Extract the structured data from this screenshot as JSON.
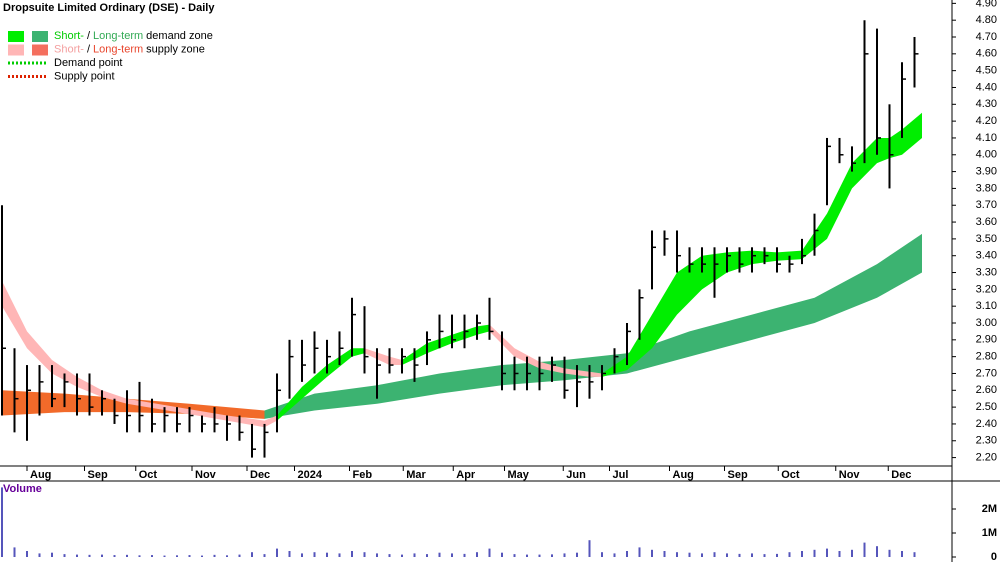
{
  "chart_data": {
    "type": "ohlc",
    "title": "Dropsuite Limited Ordinary (DSE) - Daily",
    "legend": [
      {
        "swatches": [
          "#00ee00",
          "#3cb371"
        ],
        "parts": [
          "Short-",
          "/",
          "Long-term",
          "demand zone"
        ],
        "part_colors": [
          "#00cc00",
          "#000000",
          "#33aa55",
          "#000000"
        ]
      },
      {
        "swatches": [
          "#ffb6b6",
          "#f46f5e"
        ],
        "parts": [
          "Short-",
          "/",
          "Long-term",
          "supply zone"
        ],
        "part_colors": [
          "#f4a0a0",
          "#000000",
          "#e8452c",
          "#000000"
        ]
      },
      {
        "line_color": "#00cc00",
        "parts": [
          "Demand point"
        ],
        "part_colors": [
          "#000000"
        ]
      },
      {
        "line_color": "#dd2200",
        "parts": [
          "Supply point"
        ],
        "part_colors": [
          "#000000"
        ]
      }
    ],
    "xlim": [
      0,
      76
    ],
    "xticks": [
      {
        "value": 2.0,
        "label": "Aug"
      },
      {
        "value": 6.6,
        "label": "Sep"
      },
      {
        "value": 10.7,
        "label": "Oct"
      },
      {
        "value": 15.2,
        "label": "Nov"
      },
      {
        "value": 19.6,
        "label": "Dec"
      },
      {
        "value": 23.4,
        "label": "2024"
      },
      {
        "value": 27.8,
        "label": "Feb"
      },
      {
        "value": 32.1,
        "label": "Mar"
      },
      {
        "value": 36.1,
        "label": "Apr"
      },
      {
        "value": 40.2,
        "label": "May"
      },
      {
        "value": 44.9,
        "label": "Jun"
      },
      {
        "value": 48.6,
        "label": "Jul"
      },
      {
        "value": 53.4,
        "label": "Aug"
      },
      {
        "value": 57.8,
        "label": "Sep"
      },
      {
        "value": 62.1,
        "label": "Oct"
      },
      {
        "value": 66.7,
        "label": "Nov"
      },
      {
        "value": 70.9,
        "label": "Dec"
      }
    ],
    "ylim": [
      2.15,
      4.92
    ],
    "yticks": [
      {
        "value": 2.2,
        "label": "2.20"
      },
      {
        "value": 2.3,
        "label": "2.30"
      },
      {
        "value": 2.4,
        "label": "2.40"
      },
      {
        "value": 2.5,
        "label": "2.50"
      },
      {
        "value": 2.6,
        "label": "2.60"
      },
      {
        "value": 2.7,
        "label": "2.70"
      },
      {
        "value": 2.8,
        "label": "2.80"
      },
      {
        "value": 2.9,
        "label": "2.90"
      },
      {
        "value": 3.0,
        "label": "3.00"
      },
      {
        "value": 3.1,
        "label": "3.10"
      },
      {
        "value": 3.2,
        "label": "3.20"
      },
      {
        "value": 3.3,
        "label": "3.30"
      },
      {
        "value": 3.4,
        "label": "3.40"
      },
      {
        "value": 3.5,
        "label": "3.50"
      },
      {
        "value": 3.6,
        "label": "3.60"
      },
      {
        "value": 3.7,
        "label": "3.70"
      },
      {
        "value": 3.8,
        "label": "3.80"
      },
      {
        "value": 3.9,
        "label": "3.90"
      },
      {
        "value": 4.0,
        "label": "4.00"
      },
      {
        "value": 4.1,
        "label": "4.10"
      },
      {
        "value": 4.2,
        "label": "4.20"
      },
      {
        "value": 4.3,
        "label": "4.30"
      },
      {
        "value": 4.4,
        "label": "4.40"
      },
      {
        "value": 4.5,
        "label": "4.50"
      },
      {
        "value": 4.6,
        "label": "4.60"
      },
      {
        "value": 4.7,
        "label": "4.70"
      },
      {
        "value": 4.8,
        "label": "4.80"
      },
      {
        "value": 4.9,
        "label": "4.90"
      }
    ],
    "bar_color": "#000000",
    "low": [
      2.45,
      2.35,
      2.3,
      2.45,
      2.5,
      2.5,
      2.45,
      2.45,
      2.45,
      2.4,
      2.35,
      2.35,
      2.35,
      2.35,
      2.35,
      2.35,
      2.35,
      2.35,
      2.3,
      2.3,
      2.2,
      2.2,
      2.35,
      2.55,
      2.65,
      2.7,
      2.7,
      2.75,
      2.8,
      2.7,
      2.55,
      2.7,
      2.7,
      2.65,
      2.75,
      2.85,
      2.85,
      2.85,
      2.9,
      2.9,
      2.6,
      2.6,
      2.6,
      2.6,
      2.65,
      2.55,
      2.5,
      2.55,
      2.6,
      2.7,
      2.75,
      2.9,
      3.2,
      3.4,
      3.3,
      3.3,
      3.3,
      3.15,
      3.3,
      3.3,
      3.3,
      3.35,
      3.3,
      3.3,
      3.35,
      3.4,
      3.7,
      3.95,
      3.9,
      3.95,
      4.0,
      3.8,
      4.1,
      4.4
    ],
    "high": [
      3.7,
      2.85,
      2.75,
      2.75,
      2.75,
      2.7,
      2.7,
      2.7,
      2.6,
      2.55,
      2.6,
      2.65,
      2.55,
      2.5,
      2.5,
      2.5,
      2.45,
      2.5,
      2.45,
      2.45,
      2.4,
      2.4,
      2.7,
      2.9,
      2.9,
      2.95,
      2.9,
      2.95,
      3.15,
      3.1,
      2.85,
      2.85,
      2.85,
      2.85,
      2.95,
      3.05,
      3.05,
      3.05,
      3.05,
      3.15,
      2.95,
      2.8,
      2.8,
      2.8,
      2.8,
      2.8,
      2.75,
      2.75,
      2.75,
      2.85,
      3.0,
      3.2,
      3.55,
      3.55,
      3.55,
      3.45,
      3.45,
      3.45,
      3.45,
      3.45,
      3.45,
      3.45,
      3.45,
      3.4,
      3.5,
      3.65,
      4.1,
      4.1,
      4.05,
      4.8,
      4.75,
      4.3,
      4.55,
      4.7
    ],
    "close": [
      2.85,
      2.55,
      2.6,
      2.65,
      2.55,
      2.65,
      2.55,
      2.5,
      2.55,
      2.45,
      2.45,
      2.45,
      2.4,
      2.45,
      2.4,
      2.45,
      2.4,
      2.4,
      2.4,
      2.35,
      2.25,
      2.35,
      2.6,
      2.8,
      2.75,
      2.85,
      2.8,
      2.85,
      3.05,
      2.8,
      2.75,
      2.75,
      2.8,
      2.75,
      2.9,
      2.95,
      2.9,
      2.95,
      3.0,
      2.95,
      2.7,
      2.7,
      2.7,
      2.7,
      2.75,
      2.6,
      2.65,
      2.65,
      2.7,
      2.8,
      2.95,
      3.15,
      3.45,
      3.5,
      3.4,
      3.35,
      3.35,
      3.35,
      3.4,
      3.35,
      3.4,
      3.4,
      3.35,
      3.35,
      3.4,
      3.55,
      4.05,
      4.0,
      3.95,
      4.6,
      4.1,
      4.0,
      4.45,
      4.6
    ],
    "zones": [
      {
        "color": "#f26a2a",
        "x": [
          0,
          5,
          10,
          15,
          21
        ],
        "upper": [
          2.6,
          2.58,
          2.55,
          2.52,
          2.48
        ],
        "lower": [
          2.45,
          2.47,
          2.47,
          2.46,
          2.43
        ]
      },
      {
        "color": "#3cb371",
        "x": [
          21,
          25,
          30,
          35,
          40,
          45,
          50,
          55,
          60,
          65,
          70,
          73.6
        ],
        "upper": [
          2.48,
          2.58,
          2.63,
          2.7,
          2.75,
          2.78,
          2.82,
          2.95,
          3.05,
          3.15,
          3.35,
          3.53
        ],
        "lower": [
          2.43,
          2.48,
          2.52,
          2.58,
          2.63,
          2.66,
          2.7,
          2.8,
          2.9,
          3.0,
          3.15,
          3.3
        ]
      },
      {
        "color": "#ffb6b6",
        "x": [
          0,
          2,
          4,
          6,
          8,
          10,
          14,
          18,
          21,
          22
        ],
        "upper": [
          3.25,
          2.95,
          2.78,
          2.68,
          2.6,
          2.55,
          2.5,
          2.45,
          2.42,
          2.45
        ],
        "lower": [
          3.1,
          2.85,
          2.7,
          2.62,
          2.56,
          2.52,
          2.47,
          2.42,
          2.38,
          2.42
        ]
      },
      {
        "color": "#00ee00",
        "x": [
          22,
          24,
          26,
          28,
          29
        ],
        "upper": [
          2.45,
          2.62,
          2.75,
          2.85,
          2.85
        ],
        "lower": [
          2.42,
          2.55,
          2.68,
          2.8,
          2.82
        ]
      },
      {
        "color": "#ffb6b6",
        "x": [
          29,
          31,
          32
        ],
        "upper": [
          2.85,
          2.8,
          2.78
        ],
        "lower": [
          2.82,
          2.75,
          2.75
        ]
      },
      {
        "color": "#00ee00",
        "x": [
          32,
          34,
          36,
          38,
          39
        ],
        "upper": [
          2.78,
          2.88,
          2.93,
          2.98,
          2.99
        ],
        "lower": [
          2.75,
          2.82,
          2.88,
          2.93,
          2.95
        ]
      },
      {
        "color": "#ffb6b6",
        "x": [
          39,
          41,
          43,
          45,
          47,
          48
        ],
        "upper": [
          2.99,
          2.85,
          2.77,
          2.73,
          2.71,
          2.7
        ],
        "lower": [
          2.95,
          2.8,
          2.73,
          2.7,
          2.68,
          2.68
        ]
      },
      {
        "color": "#00ee00",
        "x": [
          48,
          50,
          52,
          54,
          56,
          58,
          60,
          62,
          64,
          66,
          68,
          70,
          71,
          72,
          73.6
        ],
        "upper": [
          2.7,
          2.8,
          3.05,
          3.3,
          3.4,
          3.42,
          3.43,
          3.42,
          3.43,
          3.65,
          3.95,
          4.1,
          4.1,
          4.15,
          4.25
        ],
        "lower": [
          2.68,
          2.72,
          2.85,
          3.05,
          3.2,
          3.3,
          3.35,
          3.37,
          3.38,
          3.5,
          3.8,
          3.95,
          3.98,
          4.0,
          4.1
        ]
      }
    ],
    "volume": {
      "label": "Volume",
      "color": "#5555bb",
      "ylim": [
        0,
        3125000
      ],
      "yticks": [
        0,
        {
          "value": 1000000,
          "label": "1M"
        },
        {
          "value": 2000000,
          "label": "2M"
        }
      ],
      "values": [
        2900000,
        400000,
        250000,
        150000,
        180000,
        120000,
        100000,
        90000,
        100000,
        80000,
        90000,
        70000,
        80000,
        60000,
        70000,
        80000,
        60000,
        90000,
        70000,
        100000,
        200000,
        120000,
        350000,
        250000,
        150000,
        200000,
        180000,
        150000,
        250000,
        200000,
        150000,
        120000,
        100000,
        150000,
        120000,
        180000,
        150000,
        130000,
        200000,
        350000,
        180000,
        120000,
        100000,
        100000,
        110000,
        150000,
        180000,
        700000,
        200000,
        150000,
        250000,
        400000,
        300000,
        250000,
        200000,
        180000,
        150000,
        200000,
        150000,
        130000,
        150000,
        120000,
        130000,
        200000,
        250000,
        300000,
        350000,
        250000,
        300000,
        600000,
        450000,
        300000,
        250000,
        200000
      ]
    }
  }
}
